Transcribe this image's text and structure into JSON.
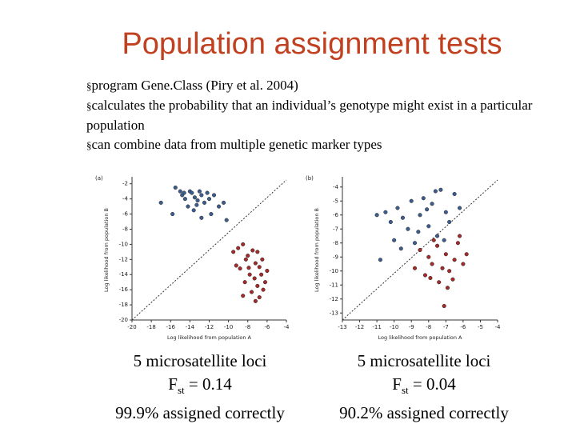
{
  "title": "Population assignment tests",
  "bullets": [
    "program Gene.Class (Piry et al. 2004)",
    "calculates the probability that an individual’s genotype might exist in a particular population",
    "can combine data from multiple genetic marker types"
  ],
  "chart_data": [
    {
      "type": "scatter",
      "panel": "(a)",
      "xlabel": "Log likelihood from population A",
      "ylabel": "Log likelihood from population B",
      "xlim": [
        -20,
        -4
      ],
      "xticks": [
        -20,
        -18,
        -16,
        -14,
        -12,
        -10,
        -8,
        -6,
        -4
      ],
      "ylim": [
        -20,
        -1.5
      ],
      "yticks": [
        -2,
        -4,
        -6,
        -8,
        -10,
        -12,
        -14,
        -16,
        -18,
        -20
      ],
      "series": [
        {
          "color": "#3d5d8f",
          "x": [
            -17,
            -15.5,
            -15,
            -14.8,
            -14.5,
            -14,
            -13.8,
            -13.5,
            -13.2,
            -13,
            -12.8,
            -12.5,
            -12.2,
            -12,
            -11.5,
            -11,
            -10.5,
            -11.8,
            -13.6,
            -14.2,
            -15.8,
            -12.8,
            -14.6,
            -13.3,
            -10.2
          ],
          "values": [
            -4.5,
            -2.5,
            -3,
            -3.5,
            -4,
            -3,
            -3.2,
            -3.8,
            -4.2,
            -3,
            -3.5,
            -4.5,
            -3.2,
            -4,
            -3.5,
            -5,
            -4.5,
            -6,
            -5.5,
            -5,
            -6,
            -6.5,
            -3.2,
            -4.8,
            -6.8
          ]
        },
        {
          "color": "#a52a2a",
          "x": [
            -9.5,
            -9,
            -8.5,
            -8.2,
            -8,
            -7.5,
            -7.2,
            -7,
            -6.8,
            -6.5,
            -8.8,
            -7.8,
            -7.3,
            -6.6,
            -8.3,
            -7,
            -6.4,
            -7.6,
            -8.5,
            -6.8,
            -7.2,
            -6,
            -9.2,
            -7.9,
            -6.2
          ],
          "values": [
            -11,
            -10.5,
            -10,
            -12,
            -11.5,
            -10.8,
            -12.5,
            -11,
            -13,
            -12,
            -13.2,
            -14,
            -14.5,
            -14,
            -15,
            -15.5,
            -16,
            -16.3,
            -16.8,
            -17,
            -17.5,
            -13.5,
            -12.8,
            -13.1,
            -15
          ]
        }
      ],
      "caption": {
        "loci": "5 microsatellite loci",
        "fst_symbol": "F",
        "fst_subscript": "st",
        "fst_value": "= 0.14",
        "assigned": "99.9% assigned correctly"
      }
    },
    {
      "type": "scatter",
      "panel": "(b)",
      "xlabel": "Log likelihood from population A",
      "ylabel": "Log likelihood from population B",
      "xlim": [
        -13,
        -4
      ],
      "xticks": [
        -13,
        -12,
        -11,
        -10,
        -9,
        -8,
        -7,
        -6,
        -5,
        -4
      ],
      "ylim": [
        -13.5,
        -3.5
      ],
      "yticks": [
        -4,
        -5,
        -6,
        -7,
        -8,
        -9,
        -10,
        -11,
        -12,
        -13
      ],
      "series": [
        {
          "color": "#3d5d8f",
          "x": [
            -11,
            -10.5,
            -10.2,
            -10,
            -9.8,
            -9.5,
            -9.2,
            -9,
            -8.8,
            -8.5,
            -8.3,
            -8,
            -7.8,
            -7.5,
            -7.3,
            -7,
            -6.8,
            -6.5,
            -7.6,
            -8.6,
            -9.6,
            -10.8,
            -6.2,
            -7.1,
            -8.1
          ],
          "values": [
            -6,
            -5.8,
            -6.5,
            -7.8,
            -5.5,
            -6.2,
            -7,
            -5,
            -8,
            -6,
            -4.8,
            -6.8,
            -5.2,
            -7.5,
            -4.2,
            -5.8,
            -6.5,
            -4.5,
            -4.3,
            -7.2,
            -8.4,
            -9.2,
            -5.5,
            -7.8,
            -5.6
          ]
        },
        {
          "color": "#a52a2a",
          "x": [
            -8.5,
            -8,
            -7.8,
            -7.5,
            -7.2,
            -7,
            -6.8,
            -6.5,
            -6.3,
            -6,
            -8.2,
            -7.4,
            -6.9,
            -8.8,
            -7.9,
            -6.6,
            -7.1,
            -6.2,
            -5.8,
            -7.7
          ],
          "values": [
            -8.5,
            -9,
            -9.5,
            -8.2,
            -9.8,
            -8.8,
            -10,
            -9.2,
            -8,
            -9.5,
            -10.3,
            -10.8,
            -11.2,
            -9.8,
            -10.5,
            -10.6,
            -12.5,
            -7.5,
            -8.8,
            -7.8
          ]
        }
      ],
      "caption": {
        "loci": "5 microsatellite loci",
        "fst_symbol": "F",
        "fst_subscript": "st",
        "fst_value": "= 0.04",
        "assigned": "90.2% assigned correctly"
      }
    }
  ]
}
